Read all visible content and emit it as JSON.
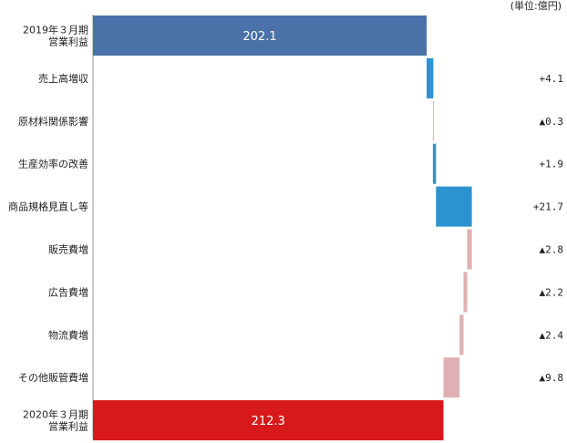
{
  "chart_data": {
    "type": "bar",
    "subtype": "waterfall",
    "unit_label": "(単位:億円)",
    "start": {
      "label": [
        "2019年３月期",
        "営業利益"
      ],
      "value": 202.1,
      "value_label": "202.1",
      "color": "#4a72a8"
    },
    "steps": [
      {
        "label": "売上高増収",
        "delta": 4.1,
        "value_label": "+4.1",
        "color": "#2b93cf"
      },
      {
        "label": "原材料関係影響",
        "delta": -0.3,
        "value_label": "▲0.3",
        "color": "#dfb0b3"
      },
      {
        "label": "生産効率の改善",
        "delta": 1.9,
        "value_label": "+1.9",
        "color": "#2b93cf"
      },
      {
        "label": "商品規格見直し等",
        "delta": 21.7,
        "value_label": "+21.7",
        "color": "#2b93cf"
      },
      {
        "label": "販売費増",
        "delta": -2.8,
        "value_label": "▲2.8",
        "color": "#dfb0b3"
      },
      {
        "label": "広告費増",
        "delta": -2.2,
        "value_label": "▲2.2",
        "color": "#dfb0b3"
      },
      {
        "label": "物流費増",
        "delta": -2.4,
        "value_label": "▲2.4",
        "color": "#dfb0b3"
      },
      {
        "label": "その他販管費増",
        "delta": -9.8,
        "value_label": "▲9.8",
        "color": "#dfb0b3"
      }
    ],
    "end": {
      "label": [
        "2020年３月期",
        "営業利益"
      ],
      "value": 212.3,
      "value_label": "212.3",
      "color": "#d7191c"
    },
    "orientation": "horizontal",
    "grid": false,
    "legend": "none"
  }
}
